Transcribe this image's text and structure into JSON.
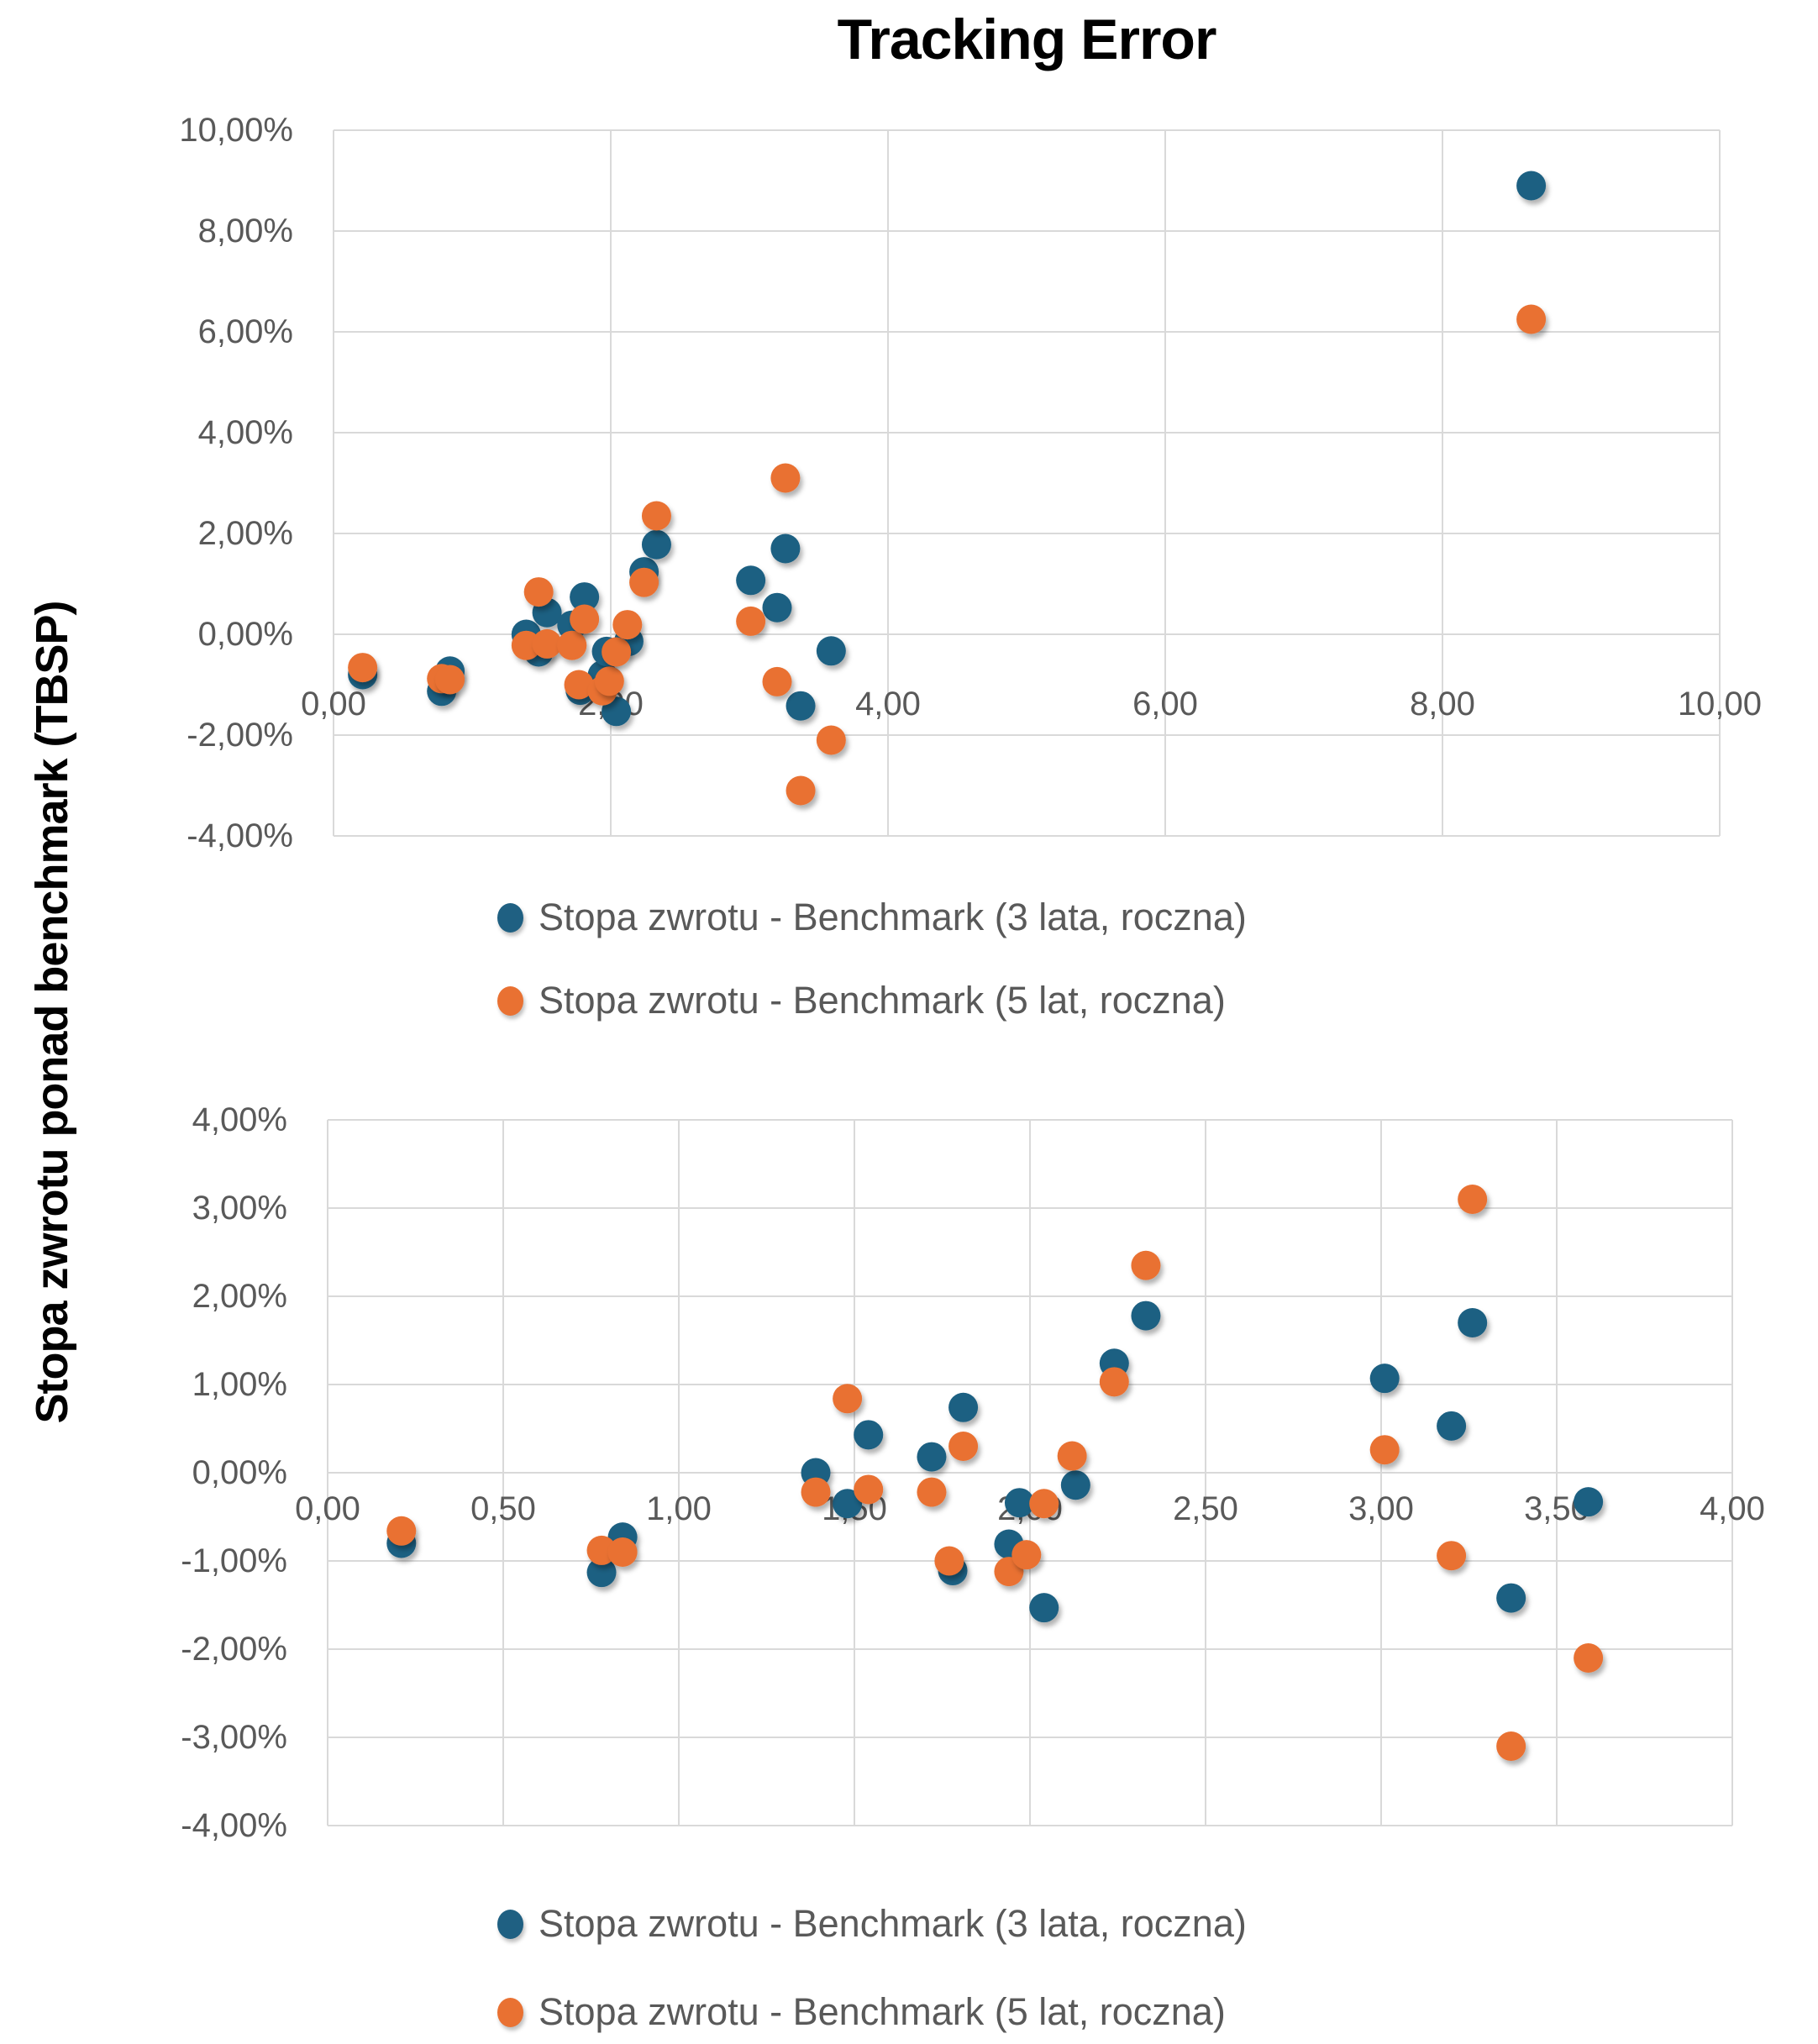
{
  "title": "Tracking Error",
  "y_axis_title": "Stopa zwrotu ponad benchmark (TBSP)",
  "colors": {
    "series_3y": "#1F6082",
    "series_5y": "#E97132",
    "grid": "#D9D9D9",
    "tick_text": "#595959",
    "title_text": "#000000"
  },
  "legend": {
    "item_3y": "Stopa zwrotu - Benchmark (3 lata, roczna)",
    "item_5y": "Stopa zwrotu - Benchmark (5 lat, roczna)"
  },
  "chart_data": [
    {
      "type": "scatter",
      "title": "Tracking Error",
      "xlabel": "",
      "ylabel": "Stopa zwrotu ponad benchmark (TBSP)",
      "xlim": [
        0,
        10
      ],
      "ylim_percent": [
        -4,
        10
      ],
      "x_axis": {
        "min": 0,
        "max": 10,
        "step": 2,
        "tick_labels": [
          "0,00",
          "2,00",
          "4,00",
          "6,00",
          "8,00",
          "10,00"
        ]
      },
      "y_axis": {
        "min": -4,
        "max": 10,
        "step": 2,
        "tick_labels": [
          "-4,00%",
          "-2,00%",
          "0,00%",
          "2,00%",
          "4,00%",
          "6,00%",
          "8,00%",
          "10,00%"
        ]
      },
      "grid": true,
      "legend_position": "bottom",
      "series": [
        {
          "name": "Stopa zwrotu - Benchmark (3 lata, roczna)",
          "color": "#1F6082",
          "points": [
            [
              0.21,
              -0.8
            ],
            [
              0.78,
              -1.13
            ],
            [
              0.84,
              -0.73
            ],
            [
              1.39,
              0.0
            ],
            [
              1.48,
              -0.35
            ],
            [
              1.54,
              0.43
            ],
            [
              1.72,
              0.18
            ],
            [
              1.78,
              -1.11
            ],
            [
              1.81,
              0.74
            ],
            [
              1.94,
              -0.81
            ],
            [
              1.97,
              -0.34
            ],
            [
              2.04,
              -1.53
            ],
            [
              2.13,
              -0.14
            ],
            [
              2.24,
              1.24
            ],
            [
              2.33,
              1.78
            ],
            [
              3.01,
              1.07
            ],
            [
              3.2,
              0.53
            ],
            [
              3.26,
              1.7
            ],
            [
              3.37,
              -1.42
            ],
            [
              3.59,
              -0.33
            ],
            [
              8.64,
              8.9
            ]
          ]
        },
        {
          "name": "Stopa zwrotu - Benchmark (5 lat, roczna)",
          "color": "#E97132",
          "points": [
            [
              0.21,
              -0.66
            ],
            [
              0.78,
              -0.88
            ],
            [
              0.84,
              -0.9
            ],
            [
              1.39,
              -0.22
            ],
            [
              1.48,
              0.84
            ],
            [
              1.54,
              -0.19
            ],
            [
              1.72,
              -0.22
            ],
            [
              1.77,
              -1.0
            ],
            [
              1.81,
              0.3
            ],
            [
              1.94,
              -1.12
            ],
            [
              1.99,
              -0.93
            ],
            [
              2.04,
              -0.35
            ],
            [
              2.12,
              0.19
            ],
            [
              2.24,
              1.03
            ],
            [
              2.33,
              2.35
            ],
            [
              3.01,
              0.26
            ],
            [
              3.2,
              -0.94
            ],
            [
              3.26,
              3.1
            ],
            [
              3.37,
              -3.1
            ],
            [
              3.59,
              -2.1
            ],
            [
              8.64,
              6.25
            ]
          ]
        }
      ]
    },
    {
      "type": "scatter",
      "title": "",
      "xlabel": "",
      "ylabel": "Stopa zwrotu ponad benchmark (TBSP)",
      "xlim": [
        0,
        4
      ],
      "ylim_percent": [
        -4,
        4
      ],
      "x_axis": {
        "min": 0,
        "max": 4,
        "step": 0.5,
        "tick_labels": [
          "0,00",
          "0,50",
          "1,00",
          "1,50",
          "2,00",
          "2,50",
          "3,00",
          "3,50",
          "4,00"
        ]
      },
      "y_axis": {
        "min": -4,
        "max": 4,
        "step": 1,
        "tick_labels": [
          "-4,00%",
          "-3,00%",
          "-2,00%",
          "-1,00%",
          "0,00%",
          "1,00%",
          "2,00%",
          "3,00%",
          "4,00%"
        ]
      },
      "grid": true,
      "legend_position": "bottom",
      "series": [
        {
          "name": "Stopa zwrotu - Benchmark (3 lata, roczna)",
          "color": "#1F6082",
          "points": [
            [
              0.21,
              -0.8
            ],
            [
              0.78,
              -1.13
            ],
            [
              0.84,
              -0.73
            ],
            [
              1.39,
              0.0
            ],
            [
              1.48,
              -0.35
            ],
            [
              1.54,
              0.43
            ],
            [
              1.72,
              0.18
            ],
            [
              1.78,
              -1.11
            ],
            [
              1.81,
              0.74
            ],
            [
              1.94,
              -0.81
            ],
            [
              1.97,
              -0.34
            ],
            [
              2.04,
              -1.53
            ],
            [
              2.13,
              -0.14
            ],
            [
              2.24,
              1.24
            ],
            [
              2.33,
              1.78
            ],
            [
              3.01,
              1.07
            ],
            [
              3.2,
              0.53
            ],
            [
              3.26,
              1.7
            ],
            [
              3.37,
              -1.42
            ],
            [
              3.59,
              -0.33
            ]
          ]
        },
        {
          "name": "Stopa zwrotu - Benchmark (5 lat, roczna)",
          "color": "#E97132",
          "points": [
            [
              0.21,
              -0.66
            ],
            [
              0.78,
              -0.88
            ],
            [
              0.84,
              -0.9
            ],
            [
              1.39,
              -0.22
            ],
            [
              1.48,
              0.84
            ],
            [
              1.54,
              -0.19
            ],
            [
              1.72,
              -0.22
            ],
            [
              1.77,
              -1.0
            ],
            [
              1.81,
              0.3
            ],
            [
              1.94,
              -1.12
            ],
            [
              1.99,
              -0.93
            ],
            [
              2.04,
              -0.35
            ],
            [
              2.12,
              0.19
            ],
            [
              2.24,
              1.03
            ],
            [
              2.33,
              2.35
            ],
            [
              3.01,
              0.26
            ],
            [
              3.2,
              -0.94
            ],
            [
              3.26,
              3.1
            ],
            [
              3.37,
              -3.1
            ],
            [
              3.59,
              -2.1
            ]
          ]
        }
      ]
    }
  ]
}
